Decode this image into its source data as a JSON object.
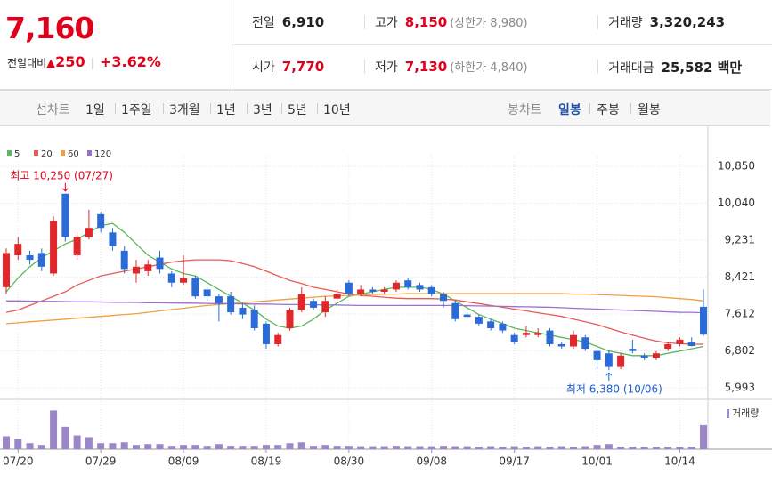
{
  "header": {
    "price": "7,160",
    "change_label": "전일대비",
    "change": "250",
    "change_rate": "+3.62%",
    "rows": [
      [
        {
          "label": "전일",
          "value": "6,910"
        },
        {
          "label": "고가",
          "value": "8,150",
          "note": "(상한가 8,980)"
        },
        {
          "label": "거래량",
          "value": "3,320,243"
        }
      ],
      [
        {
          "label": "시가",
          "value": "7,770"
        },
        {
          "label": "저가",
          "value": "7,130",
          "note": "(하한가 4,840)"
        },
        {
          "label": "거래대금",
          "value": "25,582 백만"
        }
      ]
    ]
  },
  "tabs": {
    "line_label": "선차트",
    "line_tabs": [
      "1일",
      "1주일",
      "3개월",
      "1년",
      "3년",
      "5년",
      "10년"
    ],
    "candle_label": "봉차트",
    "candle_tabs": [
      "일봉",
      "주봉",
      "월봉"
    ]
  },
  "chart_data": {
    "type": "candlestick",
    "up_color": "#e2272b",
    "down_color": "#2b6bd8",
    "grid": true,
    "categories": [
      null,
      "07/20",
      null,
      null,
      null,
      null,
      null,
      null,
      "07/29",
      null,
      null,
      null,
      null,
      null,
      null,
      "08/09",
      null,
      null,
      null,
      null,
      null,
      null,
      "08/19",
      null,
      null,
      null,
      null,
      null,
      null,
      "08/30",
      null,
      null,
      null,
      null,
      null,
      null,
      "09/08",
      null,
      null,
      null,
      null,
      null,
      null,
      "09/17",
      null,
      null,
      null,
      null,
      null,
      null,
      "10/01",
      null,
      null,
      null,
      null,
      null,
      null,
      "10/14",
      null,
      null
    ],
    "open": [
      8200,
      8900,
      8900,
      8950,
      8500,
      10250,
      8900,
      9300,
      9800,
      9400,
      9000,
      8500,
      8550,
      8850,
      8500,
      8300,
      8400,
      8150,
      8000,
      8000,
      7750,
      7700,
      7400,
      6950,
      7300,
      7700,
      7900,
      7650,
      7950,
      8300,
      8050,
      8150,
      8100,
      8150,
      8350,
      8250,
      8200,
      8050,
      7850,
      7600,
      7550,
      7450,
      7400,
      7150,
      7150,
      7150,
      7250,
      6950,
      6900,
      7100,
      6800,
      6750,
      6450,
      6850,
      6700,
      6650,
      6850,
      6950,
      7000,
      7770
    ],
    "high": [
      9050,
      9300,
      9000,
      9050,
      9750,
      10250,
      9400,
      9900,
      9850,
      9500,
      9100,
      8800,
      8800,
      9000,
      8550,
      8900,
      8450,
      8200,
      8050,
      8100,
      7850,
      7800,
      7450,
      7200,
      7750,
      8200,
      7950,
      8000,
      8150,
      8350,
      8250,
      8200,
      8200,
      8350,
      8400,
      8300,
      8250,
      8100,
      7900,
      7650,
      7600,
      7500,
      7450,
      7200,
      7350,
      7300,
      7300,
      7000,
      7250,
      7150,
      6850,
      6800,
      6750,
      7050,
      6750,
      6800,
      7000,
      7100,
      7100,
      8150
    ],
    "low": [
      8050,
      8800,
      8700,
      8550,
      8450,
      9200,
      8800,
      9250,
      9400,
      9000,
      8500,
      8300,
      8450,
      8500,
      8200,
      8250,
      7950,
      7900,
      7450,
      7600,
      7500,
      7250,
      6850,
      6900,
      7250,
      7650,
      7700,
      7550,
      7900,
      8000,
      8000,
      8050,
      8050,
      8100,
      8150,
      8100,
      8000,
      7750,
      7450,
      7500,
      7350,
      7250,
      7200,
      6950,
      7100,
      7100,
      6900,
      6850,
      6850,
      6800,
      6400,
      6380,
      6400,
      6750,
      6600,
      6600,
      6800,
      6900,
      6900,
      7130
    ],
    "close": [
      8950,
      9150,
      8800,
      8650,
      9650,
      9300,
      9300,
      9500,
      9500,
      9100,
      8600,
      8650,
      8700,
      8600,
      8300,
      8400,
      8000,
      8000,
      7850,
      7650,
      7600,
      7300,
      6950,
      7150,
      7700,
      8050,
      7750,
      7900,
      8050,
      8050,
      8150,
      8100,
      8150,
      8300,
      8200,
      8150,
      8050,
      7900,
      7500,
      7550,
      7400,
      7300,
      7250,
      7000,
      7200,
      7200,
      6950,
      6900,
      7150,
      6850,
      6600,
      6450,
      6700,
      6800,
      6650,
      6750,
      6950,
      7050,
      6910,
      7160
    ],
    "ylim": [
      5818,
      11084
    ],
    "yticks": [
      {
        "value": 10850,
        "label": "10,850"
      },
      {
        "value": 10040,
        "label": "10,040"
      },
      {
        "value": 9231,
        "label": "9,231"
      },
      {
        "value": 8421,
        "label": "8,421"
      },
      {
        "value": 7612,
        "label": "7,612"
      },
      {
        "value": 6802,
        "label": "6,802"
      },
      {
        "value": 5993,
        "label": "5,993"
      }
    ],
    "series": [
      {
        "name": "5",
        "color": "#5cb85c",
        "values": [
          8100,
          8400,
          8650,
          8850,
          9000,
          9150,
          9250,
          9400,
          9550,
          9600,
          9400,
          9150,
          8900,
          8750,
          8600,
          8500,
          8450,
          8300,
          8150,
          8000,
          7850,
          7700,
          7500,
          7350,
          7300,
          7350,
          7500,
          7700,
          7850,
          8000,
          8050,
          8100,
          8150,
          8200,
          8200,
          8200,
          8150,
          8050,
          7900,
          7750,
          7600,
          7500,
          7400,
          7300,
          7250,
          7200,
          7150,
          7100,
          7050,
          7000,
          6900,
          6800,
          6750,
          6700,
          6700,
          6700,
          6750,
          6800,
          6850,
          6900
        ]
      },
      {
        "name": "20",
        "color": "#e8595a",
        "values": [
          7650,
          7700,
          7800,
          7900,
          8000,
          8100,
          8250,
          8350,
          8450,
          8500,
          8550,
          8600,
          8650,
          8700,
          8750,
          8780,
          8800,
          8800,
          8800,
          8780,
          8720,
          8650,
          8550,
          8450,
          8350,
          8280,
          8200,
          8150,
          8100,
          8050,
          8020,
          8000,
          7980,
          7960,
          7950,
          7950,
          7950,
          7940,
          7920,
          7880,
          7840,
          7800,
          7760,
          7720,
          7680,
          7640,
          7600,
          7560,
          7500,
          7440,
          7380,
          7300,
          7220,
          7150,
          7080,
          7020,
          6980,
          6960,
          6950,
          6950
        ]
      },
      {
        "name": "60",
        "color": "#f0a040",
        "values": [
          7400,
          7420,
          7440,
          7460,
          7480,
          7500,
          7520,
          7540,
          7560,
          7580,
          7600,
          7620,
          7650,
          7680,
          7710,
          7740,
          7770,
          7800,
          7820,
          7840,
          7860,
          7880,
          7900,
          7920,
          7940,
          7960,
          7980,
          8000,
          8010,
          8020,
          8030,
          8040,
          8050,
          8050,
          8060,
          8060,
          8060,
          8060,
          8060,
          8060,
          8060,
          8060,
          8060,
          8060,
          8060,
          8060,
          8060,
          8060,
          8050,
          8050,
          8040,
          8030,
          8020,
          8010,
          8000,
          7990,
          7970,
          7950,
          7930,
          7900
        ]
      },
      {
        "name": "120",
        "color": "#9a6fd0",
        "values": [
          7900,
          7900,
          7895,
          7890,
          7890,
          7885,
          7880,
          7880,
          7875,
          7870,
          7870,
          7865,
          7860,
          7860,
          7855,
          7850,
          7850,
          7845,
          7840,
          7840,
          7835,
          7830,
          7830,
          7825,
          7820,
          7820,
          7815,
          7810,
          7810,
          7805,
          7800,
          7800,
          7800,
          7800,
          7800,
          7800,
          7800,
          7800,
          7800,
          7795,
          7790,
          7785,
          7780,
          7775,
          7770,
          7765,
          7760,
          7750,
          7740,
          7730,
          7720,
          7710,
          7700,
          7690,
          7680,
          7670,
          7660,
          7650,
          7650,
          7640
        ]
      }
    ],
    "volume": {
      "name": "거래량",
      "color": "#9b87c8",
      "ylim": [
        0,
        6000000
      ],
      "values": [
        1780000,
        1420000,
        830000,
        590000,
        5340000,
        3080000,
        1900000,
        1660000,
        830000,
        830000,
        950000,
        590000,
        710000,
        710000,
        470000,
        590000,
        590000,
        470000,
        710000,
        470000,
        470000,
        470000,
        590000,
        590000,
        830000,
        950000,
        470000,
        590000,
        470000,
        470000,
        420000,
        420000,
        420000,
        470000,
        420000,
        420000,
        420000,
        470000,
        420000,
        420000,
        360000,
        420000,
        360000,
        420000,
        360000,
        420000,
        360000,
        420000,
        360000,
        420000,
        590000,
        710000,
        360000,
        360000,
        360000,
        360000,
        360000,
        360000,
        360000,
        3320243
      ]
    },
    "annotations": {
      "high": "최고 10,250 (07/27)",
      "low": "최저 6,380 (10/06)"
    }
  }
}
